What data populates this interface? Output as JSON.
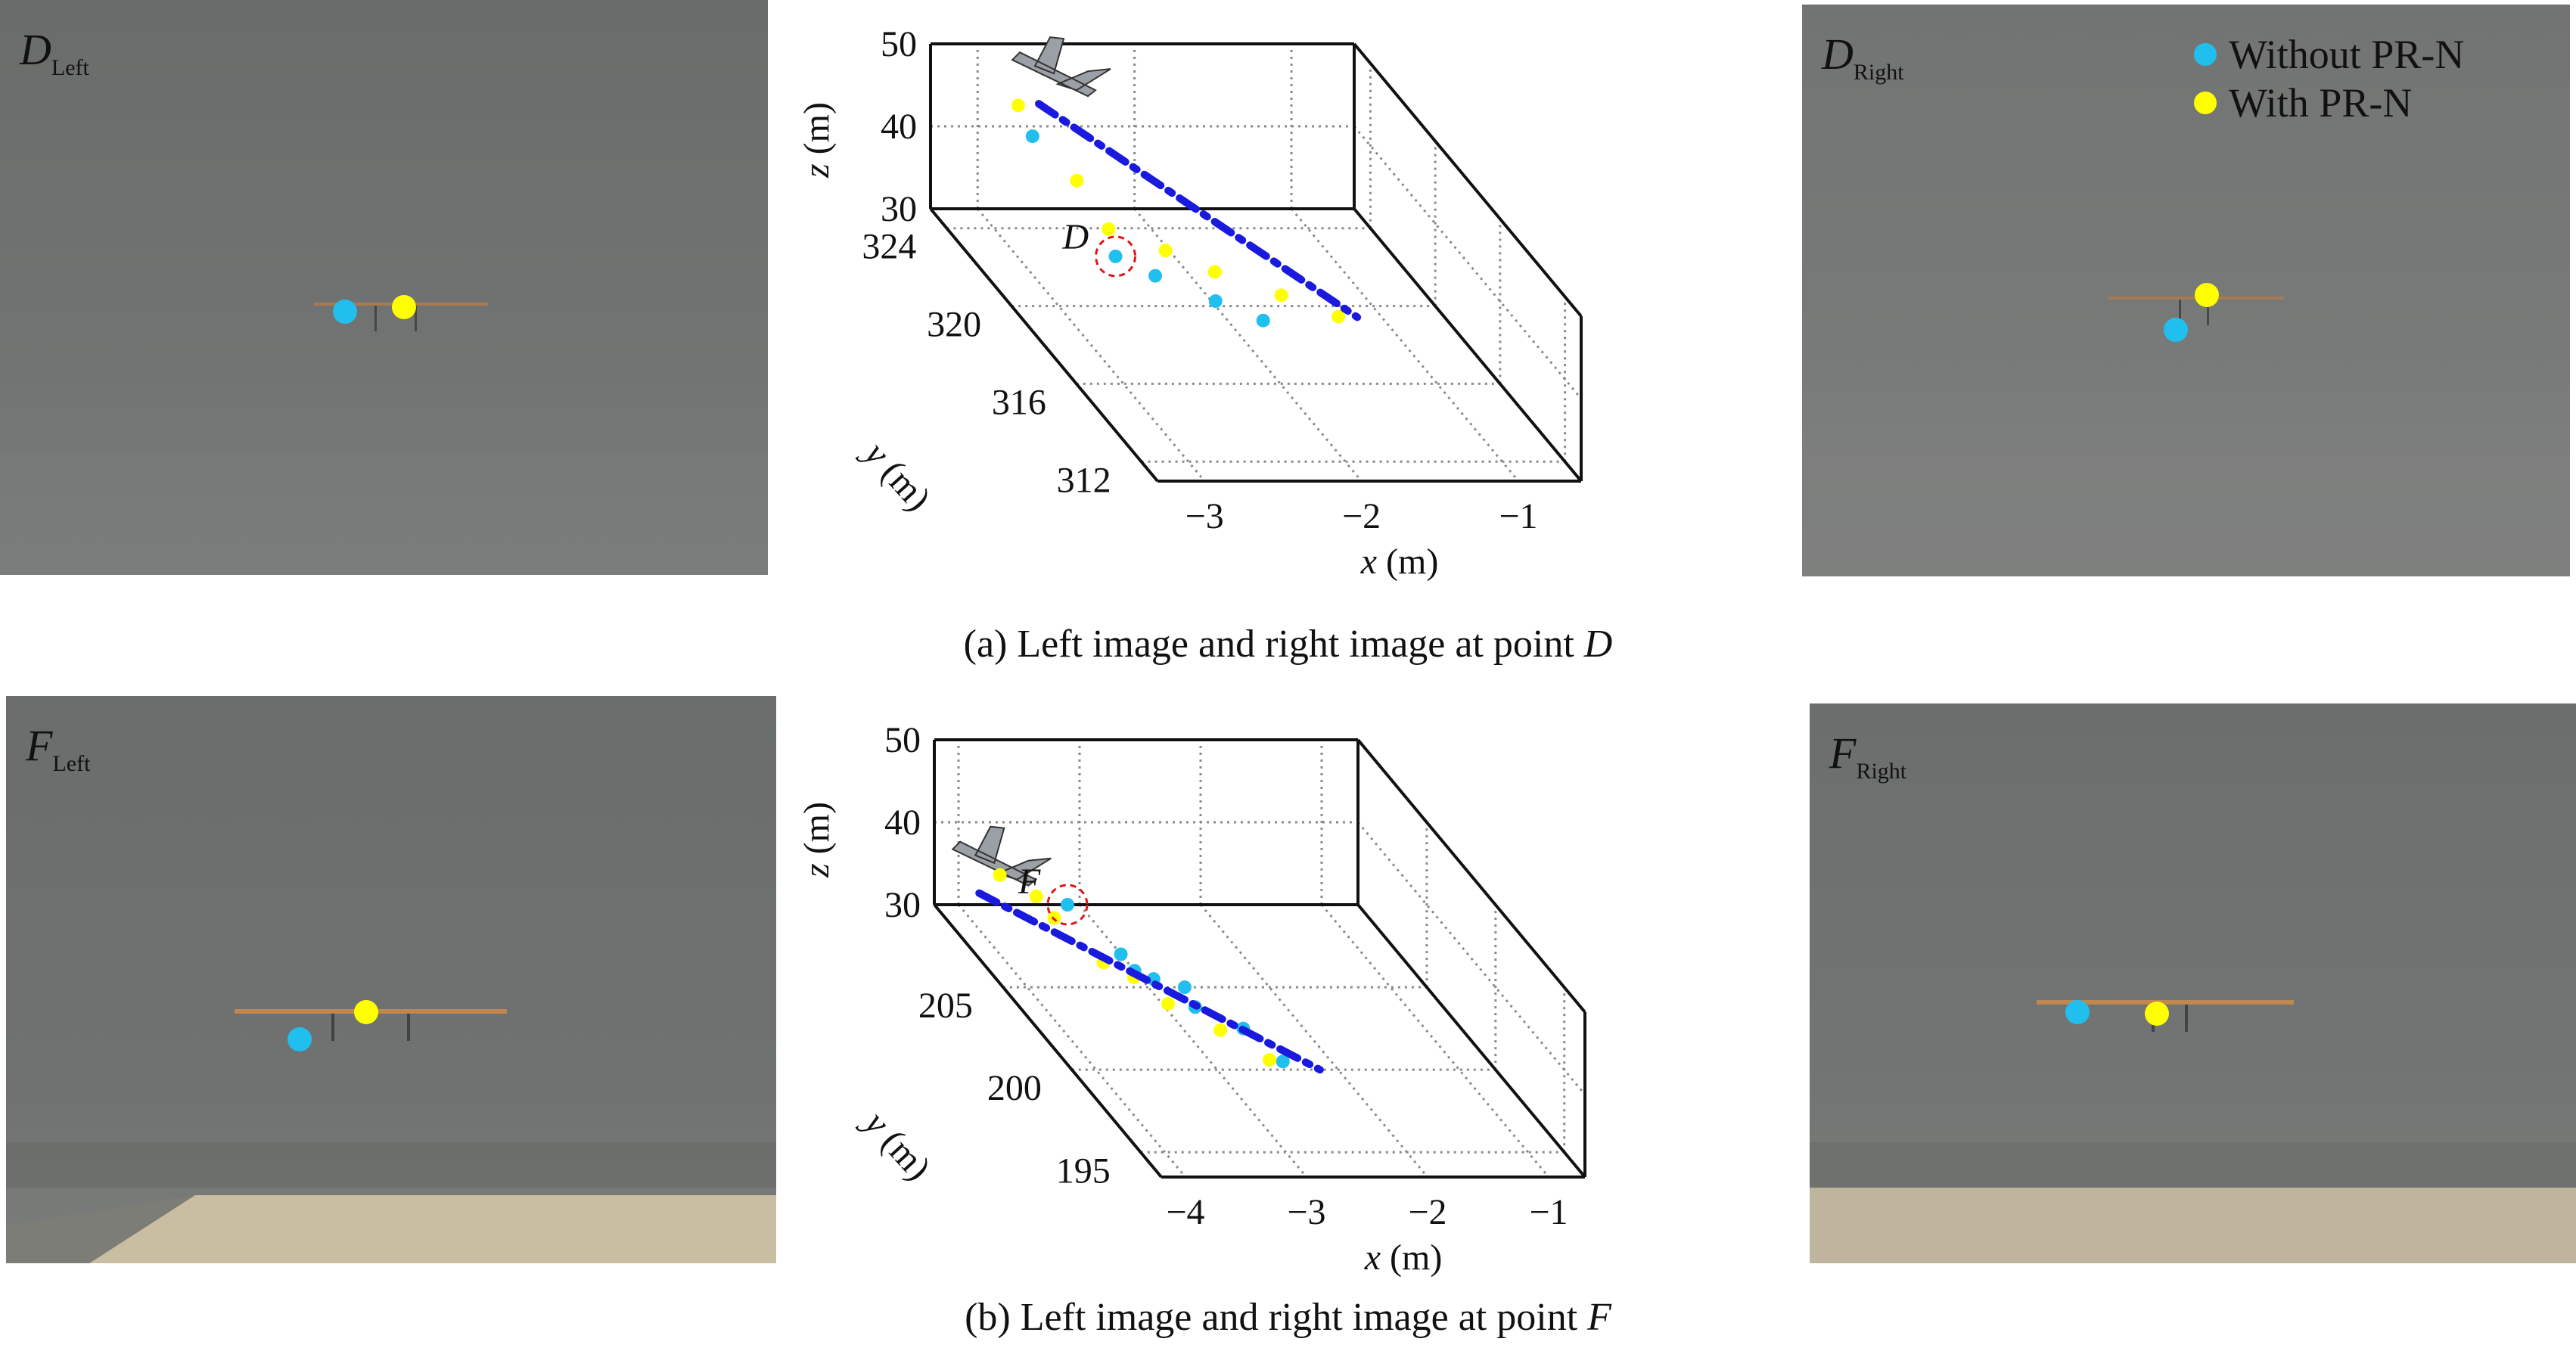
{
  "colors": {
    "without": "#21bfee",
    "with": "#ffff00",
    "trajectory": "#1a1adf",
    "marker_ring": "#e01515",
    "grid": "#8a8a8a",
    "sky": "#6f7170",
    "haze": "#808281",
    "runway": "#c9bda2",
    "airframe": "#c98a4a"
  },
  "legend": {
    "without_label": "Without PR-N",
    "with_label": "With PR-N"
  },
  "panels": {
    "a": {
      "left_label": "D",
      "left_sub": "Left",
      "right_label": "D",
      "right_sub": "Right",
      "caption_text": "(a) Left image and right image at point ",
      "caption_point": "D",
      "marker": "D"
    },
    "b": {
      "left_label": "F",
      "left_sub": "Left",
      "right_label": "F",
      "right_sub": "Right",
      "caption_text": "(b) Left image and right image at point ",
      "caption_point": "F",
      "marker": "F"
    }
  },
  "chart_data": [
    {
      "type": "scatter",
      "x_axis": {
        "var": "x",
        "unit": " (m)",
        "range": [
          -3.3,
          -0.6
        ],
        "ticks": [
          -3,
          -2,
          -1
        ],
        "tick_labels": [
          "−3",
          "−2",
          "−1"
        ]
      },
      "y_axis": {
        "var": "y",
        "unit": " (m)",
        "range": [
          311,
          325
        ],
        "ticks": [
          312,
          316,
          320,
          324
        ],
        "tick_labels": [
          "312",
          "316",
          "320",
          "324"
        ]
      },
      "z_axis": {
        "var": "z",
        "unit": " (m)",
        "range": [
          30,
          50
        ],
        "ticks": [
          30,
          40,
          50
        ],
        "tick_labels": [
          "30",
          "40",
          "50"
        ]
      },
      "series": [
        {
          "name": "Without PR-N",
          "color": "#21bfee",
          "points": [
            [
              -2.65,
              325.0,
              38.8
            ],
            [
              -2.4,
              322.3,
              30.6
            ],
            [
              -2.25,
              321.3,
              30.6
            ],
            [
              -2.0,
              320.0,
              30.6
            ],
            [
              -1.8,
              319.0,
              30.6
            ]
          ]
        },
        {
          "name": "With PR-N",
          "color": "#ffff00",
          "points": [
            [
              -2.7,
              325.4,
              41.6
            ],
            [
              -2.45,
              324.2,
              35.3
            ],
            [
              -2.3,
              323.7,
              30.6
            ],
            [
              -2.05,
              322.6,
              30.6
            ],
            [
              -1.85,
              321.5,
              30.6
            ],
            [
              -1.55,
              320.3,
              30.6
            ],
            [
              -1.3,
              319.2,
              30.6
            ]
          ]
        },
        {
          "name": "",
          "color": "#1a1adf",
          "line": true,
          "points": [
            [
              -2.6,
              325.1,
              42.5
            ],
            [
              -1.2,
              319.0,
              31.0
            ]
          ]
        }
      ],
      "marker_point": [
        -2.4,
        322.3,
        30.6
      ],
      "grid": true
    },
    {
      "type": "scatter",
      "x_axis": {
        "var": "x",
        "unit": " (m)",
        "range": [
          -4.2,
          -0.7
        ],
        "ticks": [
          -4,
          -3,
          -2,
          -1
        ],
        "tick_labels": [
          "−4",
          "−3",
          "−2",
          "−1"
        ]
      },
      "y_axis": {
        "var": "y",
        "unit": " (m)",
        "range": [
          193.5,
          210
        ],
        "ticks": [
          195,
          200,
          205
        ],
        "tick_labels": [
          "195",
          "200",
          "205"
        ]
      },
      "z_axis": {
        "var": "z",
        "unit": " (m)",
        "range": [
          30,
          50
        ],
        "ticks": [
          30,
          40,
          50
        ],
        "tick_labels": [
          "30",
          "40",
          "50"
        ]
      },
      "series": [
        {
          "name": "Without PR-N",
          "color": "#21bfee",
          "points": [
            [
              -3.1,
              210.0,
              30.0
            ],
            [
              -3.0,
              207.0,
              30.0
            ],
            [
              -3.0,
              206.0,
              30.0
            ],
            [
              -2.9,
              205.5,
              30.0
            ],
            [
              -2.7,
              205.0,
              30.0
            ],
            [
              -2.75,
              203.8,
              30.0
            ],
            [
              -2.5,
              202.5,
              30.0
            ],
            [
              -2.4,
              200.5,
              30.0
            ]
          ]
        },
        {
          "name": "With PR-N",
          "color": "#ffff00",
          "points": [
            [
              -3.5,
              211.4,
              30.8
            ],
            [
              -3.3,
              210.5,
              30.0
            ],
            [
              -3.3,
              209.2,
              30.0
            ],
            [
              -3.2,
              206.5,
              30.0
            ],
            [
              -3.05,
              205.6,
              30.0
            ],
            [
              -2.95,
              204.0,
              30.0
            ],
            [
              -2.7,
              202.4,
              30.0
            ],
            [
              -2.5,
              200.6,
              30.0
            ]
          ]
        },
        {
          "name": "",
          "color": "#1a1adf",
          "line": true,
          "points": [
            [
              -3.75,
              210.7,
              30.0
            ],
            [
              -2.15,
              200.0,
              30.0
            ]
          ]
        }
      ],
      "marker_point": [
        -3.1,
        210.0,
        30.0
      ],
      "grid": true
    }
  ]
}
